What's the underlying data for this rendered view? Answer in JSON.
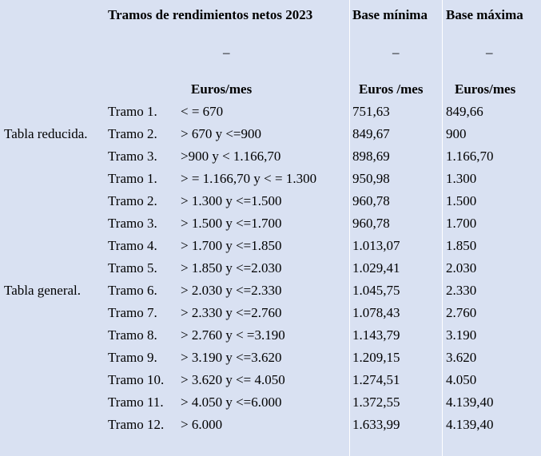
{
  "header": {
    "col_tramos": "Tramos de rendimientos netos 2023",
    "col_min": "Base mínima",
    "col_max": "Base máxima",
    "dash": "–",
    "unit_tramos": "Euros/mes",
    "unit_min": "Euros /mes",
    "unit_max": "Euros/mes"
  },
  "groups": {
    "reducida": "Tabla reducida.",
    "general": "Tabla general."
  },
  "rows": [
    {
      "tramo": "Tramo 1.",
      "range": "< = 670",
      "min": "751,63",
      "max": "849,66"
    },
    {
      "tramo": "Tramo 2.",
      "range": "> 670 y <=900",
      "min": "849,67",
      "max": "900"
    },
    {
      "tramo": "Tramo 3.",
      "range": ">900 y < 1.166,70",
      "min": "898,69",
      "max": "1.166,70"
    },
    {
      "tramo": "Tramo 1.",
      "range": "> = 1.166,70 y < = 1.300",
      "min": "950,98",
      "max": "1.300"
    },
    {
      "tramo": "Tramo 2.",
      "range": "> 1.300 y <=1.500",
      "min": "960,78",
      "max": "1.500"
    },
    {
      "tramo": "Tramo 3.",
      "range": "> 1.500 y <=1.700",
      "min": "960,78",
      "max": "1.700"
    },
    {
      "tramo": "Tramo 4.",
      "range": "> 1.700 y <=1.850",
      "min": "1.013,07",
      "max": "1.850"
    },
    {
      "tramo": "Tramo 5.",
      "range": "> 1.850 y <=2.030",
      "min": "1.029,41",
      "max": "2.030"
    },
    {
      "tramo": "Tramo 6.",
      "range": "> 2.030 y <=2.330",
      "min": "1.045,75",
      "max": "2.330"
    },
    {
      "tramo": "Tramo 7.",
      "range": "> 2.330 y <=2.760",
      "min": "1.078,43",
      "max": "2.760"
    },
    {
      "tramo": "Tramo 8.",
      "range": "> 2.760 y < =3.190",
      "min": "1.143,79",
      "max": "3.190"
    },
    {
      "tramo": "Tramo 9.",
      "range": "> 3.190 y <=3.620",
      "min": "1.209,15",
      "max": "3.620"
    },
    {
      "tramo": "Tramo 10.",
      "range": "> 3.620 y <= 4.050",
      "min": "1.274,51",
      "max": "4.050"
    },
    {
      "tramo": "Tramo 11.",
      "range": "> 4.050 y <=6.000",
      "min": "1.372,55",
      "max": "4.139,40"
    },
    {
      "tramo": "Tramo 12.",
      "range": "> 6.000",
      "min": "1.633,99",
      "max": "4.139,40"
    }
  ]
}
